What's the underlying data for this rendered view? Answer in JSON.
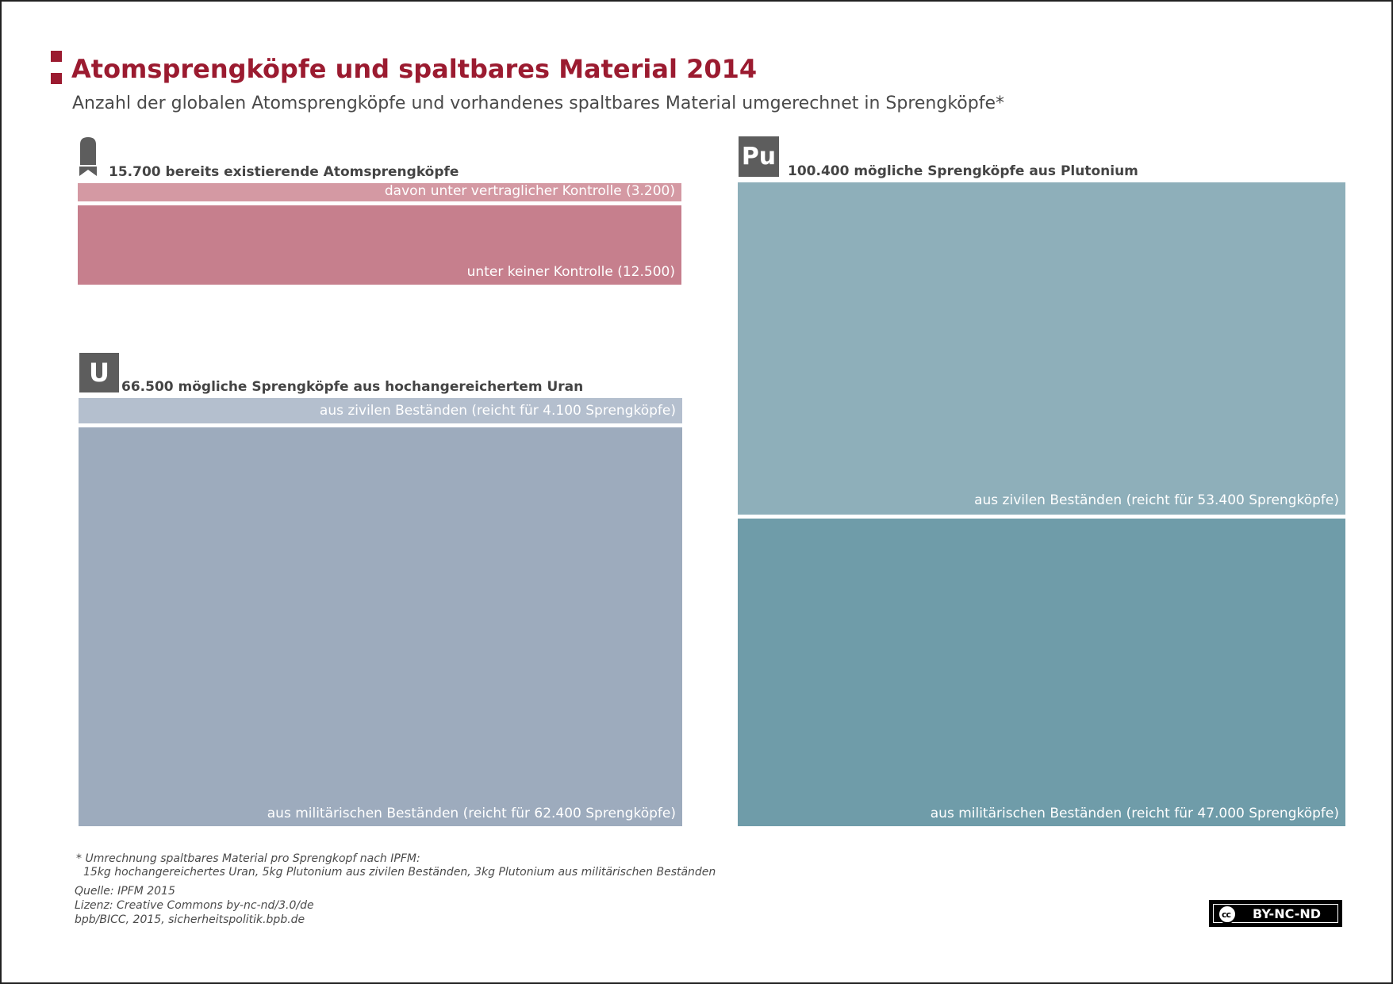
{
  "header": {
    "title": "Atomsprengköpfe und spaltbares Material 2014",
    "subtitle": "Anzahl der globalen Atomsprengköpfe und vorhandenes spaltbares Material umgerechnet in Sprengköpfe*"
  },
  "icons": {
    "warhead": "warhead-icon",
    "uranium": {
      "name": "uranium-element-icon",
      "symbol": "U"
    },
    "plutonium": {
      "name": "plutonium-element-icon",
      "symbol": "Pu"
    }
  },
  "colors": {
    "title_accent": "#9b1b30",
    "warheads_controlled": "#d499a3",
    "warheads_uncontrolled": "#c67f8d",
    "uranium_civil": "#b4bfce",
    "uranium_military": "#9dabbd",
    "plutonium_civil": "#8eafba",
    "plutonium_military": "#6f9ca9",
    "icon_gray": "#5d5d5d"
  },
  "chart_data": [
    {
      "type": "bar",
      "title": "15.700 bereits existierende Atomsprengköpfe",
      "total": 15700,
      "segments": [
        {
          "label": "davon unter vertraglicher Kontrolle (3.200)",
          "value": 3200
        },
        {
          "label": "unter keiner Kontrolle (12.500)",
          "value": 12500
        }
      ]
    },
    {
      "type": "bar",
      "title": "66.500 mögliche Sprengköpfe aus hochangereichertem Uran",
      "total": 66500,
      "segments": [
        {
          "label": "aus zivilen Beständen (reicht für 4.100 Sprengköpfe)",
          "value": 4100
        },
        {
          "label": "aus militärischen Beständen (reicht für 62.400 Sprengköpfe)",
          "value": 62400
        }
      ]
    },
    {
      "type": "bar",
      "title": "100.400 mögliche Sprengköpfe aus Plutonium",
      "total": 100400,
      "segments": [
        {
          "label": "aus zivilen Beständen (reicht für 53.400 Sprengköpfe)",
          "value": 53400
        },
        {
          "label": "aus militärischen Beständen (reicht für 47.000 Sprengköpfe)",
          "value": 47000
        }
      ]
    }
  ],
  "footer": {
    "note_line1": "* Umrechnung spaltbares Material pro Sprengkopf nach IPFM:",
    "note_line2": "15kg hochangereichertes Uran, 5kg Plutonium aus zivilen Beständen, 3kg Plutonium aus militärischen Beständen",
    "source": "Quelle: IPFM 2015",
    "license": "Lizenz: Creative Commons by-nc-nd/3.0/de",
    "credit": "bpb/BICC, 2015, sicherheitspolitik.bpb.de",
    "badge_cc": "cc",
    "badge_text": "BY-NC-ND"
  }
}
